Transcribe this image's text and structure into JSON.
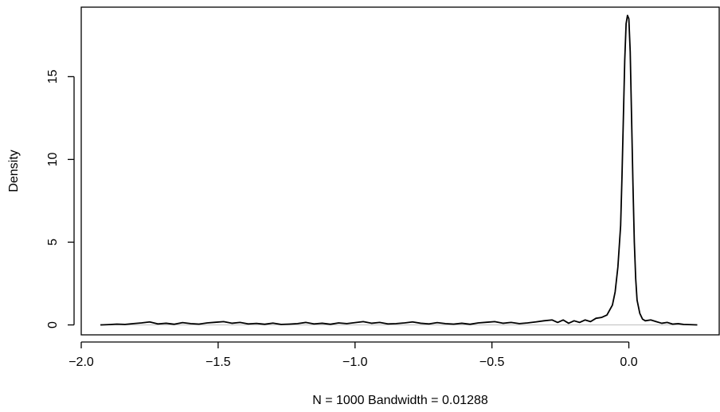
{
  "chart_data": {
    "type": "line",
    "title": "",
    "xlabel": "N = 1000   Bandwidth = 0.01288",
    "ylabel": "Density",
    "xlim": [
      -2.0,
      0.33
    ],
    "ylim": [
      -0.6,
      19.2
    ],
    "x_ticks": [
      -2.0,
      -1.5,
      -1.0,
      -0.5,
      0.0
    ],
    "x_tick_labels": [
      "−2.0",
      "−1.5",
      "−1.0",
      "−0.5",
      "0.0"
    ],
    "y_ticks": [
      0,
      5,
      10,
      15
    ],
    "y_tick_labels": [
      "0",
      "5",
      "10",
      "15"
    ],
    "grid": false,
    "baseline": 0,
    "series": [
      {
        "color": "#000000",
        "x": [
          -1.93,
          -1.9,
          -1.87,
          -1.84,
          -1.81,
          -1.78,
          -1.75,
          -1.72,
          -1.69,
          -1.66,
          -1.63,
          -1.6,
          -1.57,
          -1.54,
          -1.51,
          -1.48,
          -1.45,
          -1.42,
          -1.39,
          -1.36,
          -1.33,
          -1.3,
          -1.27,
          -1.24,
          -1.21,
          -1.18,
          -1.15,
          -1.12,
          -1.09,
          -1.06,
          -1.03,
          -1.0,
          -0.97,
          -0.94,
          -0.91,
          -0.88,
          -0.85,
          -0.82,
          -0.79,
          -0.76,
          -0.73,
          -0.7,
          -0.67,
          -0.64,
          -0.61,
          -0.58,
          -0.55,
          -0.52,
          -0.49,
          -0.46,
          -0.43,
          -0.4,
          -0.37,
          -0.34,
          -0.31,
          -0.28,
          -0.26,
          -0.24,
          -0.22,
          -0.2,
          -0.18,
          -0.16,
          -0.14,
          -0.12,
          -0.1,
          -0.08,
          -0.06,
          -0.05,
          -0.04,
          -0.03,
          -0.025,
          -0.02,
          -0.015,
          -0.01,
          -0.005,
          0.0,
          0.005,
          0.01,
          0.015,
          0.02,
          0.025,
          0.03,
          0.04,
          0.05,
          0.06,
          0.08,
          0.1,
          0.12,
          0.14,
          0.16,
          0.18,
          0.2,
          0.22,
          0.25
        ],
        "y": [
          0.0,
          0.02,
          0.05,
          0.03,
          0.08,
          0.12,
          0.18,
          0.06,
          0.1,
          0.04,
          0.14,
          0.08,
          0.05,
          0.12,
          0.16,
          0.2,
          0.1,
          0.15,
          0.06,
          0.09,
          0.04,
          0.11,
          0.03,
          0.05,
          0.08,
          0.15,
          0.06,
          0.1,
          0.04,
          0.12,
          0.08,
          0.14,
          0.2,
          0.1,
          0.15,
          0.06,
          0.08,
          0.12,
          0.18,
          0.1,
          0.06,
          0.14,
          0.08,
          0.05,
          0.1,
          0.04,
          0.12,
          0.16,
          0.2,
          0.1,
          0.15,
          0.08,
          0.12,
          0.18,
          0.25,
          0.3,
          0.15,
          0.3,
          0.1,
          0.25,
          0.15,
          0.3,
          0.2,
          0.4,
          0.45,
          0.6,
          1.2,
          2.0,
          3.5,
          6.0,
          9.0,
          12.5,
          16.0,
          18.2,
          18.7,
          18.5,
          16.5,
          12.5,
          8.5,
          5.0,
          2.8,
          1.5,
          0.7,
          0.35,
          0.25,
          0.3,
          0.2,
          0.1,
          0.15,
          0.05,
          0.08,
          0.03,
          0.02,
          0.0
        ]
      }
    ]
  }
}
